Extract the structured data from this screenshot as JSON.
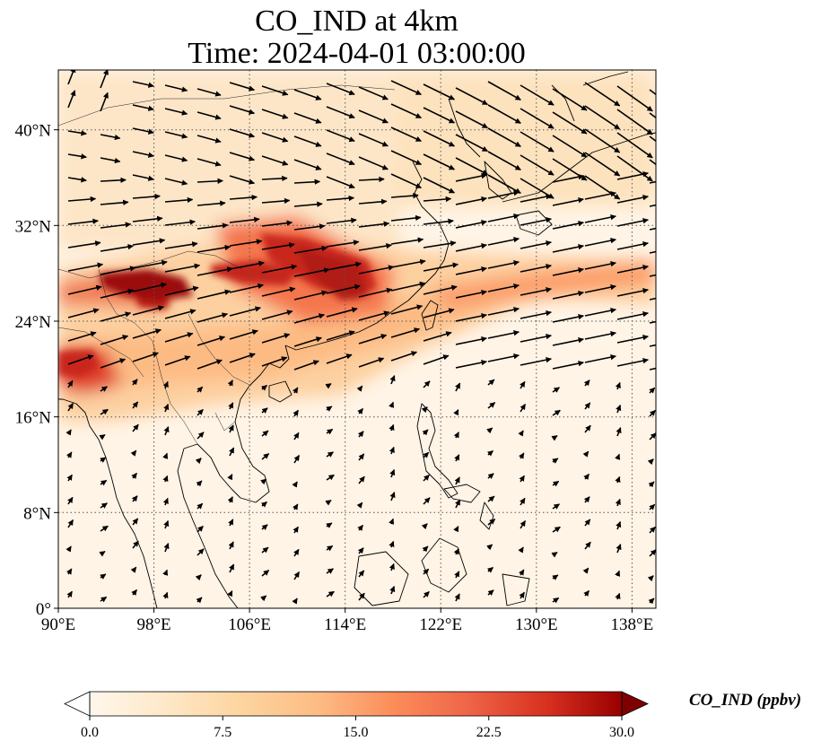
{
  "title": "CO_IND at 4km",
  "subtitle": "Time: 2024-04-01 03:00:00",
  "map": {
    "lon_range": [
      90,
      140
    ],
    "lat_range": [
      0,
      45
    ],
    "x_ticks": [
      "90°E",
      "98°E",
      "106°E",
      "114°E",
      "122°E",
      "130°E",
      "138°E"
    ],
    "x_tick_values": [
      90,
      98,
      106,
      114,
      122,
      130,
      138
    ],
    "y_ticks": [
      "0°",
      "8°N",
      "16°N",
      "24°N",
      "32°N",
      "40°N"
    ],
    "y_tick_values": [
      0,
      8,
      16,
      24,
      32,
      40
    ],
    "gridlines": true,
    "field": "CO_IND",
    "overlay": "wind vectors"
  },
  "colorbar": {
    "label": "CO_IND (ppbv)",
    "min": 0.0,
    "max": 30.0,
    "ticks": [
      "0.0",
      "7.5",
      "15.0",
      "22.5",
      "30.0"
    ],
    "tick_values": [
      0,
      7.5,
      15,
      22.5,
      30
    ],
    "extend": "both",
    "colormap": "OrRd"
  },
  "colors": {
    "low": "#fff7ec",
    "mid": "#fdbb84",
    "high": "#d7301f",
    "max": "#7f0000"
  }
}
